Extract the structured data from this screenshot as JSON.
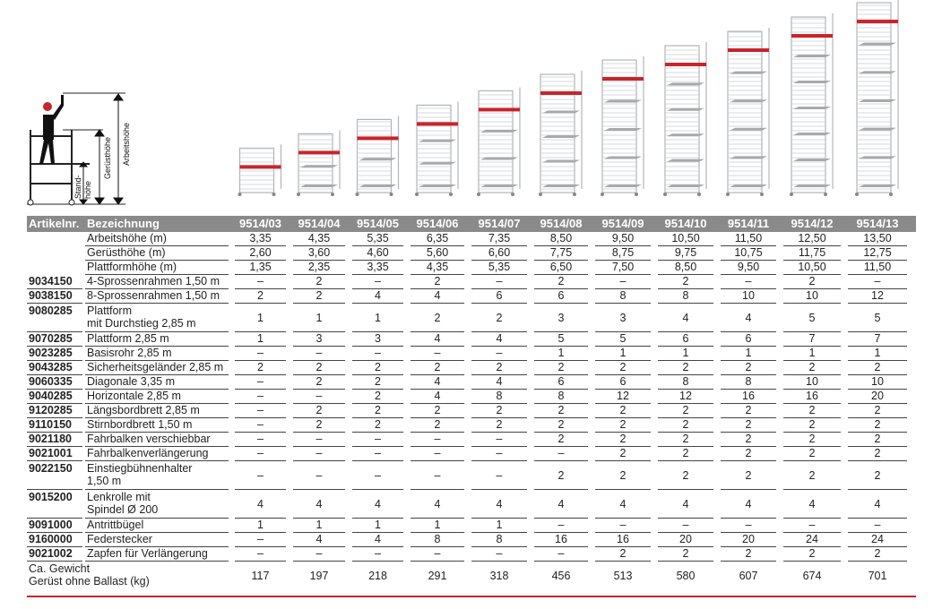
{
  "diagram": {
    "labels": {
      "working": "Arbeitshöhe",
      "scaffold": "Gerüsthöhe",
      "stand1": "Stand-",
      "stand2": "höhe"
    }
  },
  "colors": {
    "header_bg": "#8a8a8a",
    "accent": "#c8242c",
    "platform": "#a9a9a9"
  },
  "table": {
    "headers": {
      "article": "Artikelnr.",
      "description": "Bezeichnung"
    },
    "models": [
      "9514/03",
      "9514/04",
      "9514/05",
      "9514/06",
      "9514/07",
      "9514/08",
      "9514/09",
      "9514/10",
      "9514/11",
      "9514/12",
      "9514/13"
    ],
    "rows": [
      {
        "art": "",
        "desc": [
          "Arbeitshöhe (m)"
        ],
        "vals": [
          "3,35",
          "4,35",
          "5,35",
          "6,35",
          "7,35",
          "8,50",
          "9,50",
          "10,50",
          "11,50",
          "12,50",
          "13,50"
        ]
      },
      {
        "art": "",
        "desc": [
          "Gerüsthöhe (m)"
        ],
        "vals": [
          "2,60",
          "3,60",
          "4,60",
          "5,60",
          "6,60",
          "7,75",
          "8,75",
          "9,75",
          "10,75",
          "11,75",
          "12,75"
        ]
      },
      {
        "art": "",
        "desc": [
          "Plattformhöhe (m)"
        ],
        "vals": [
          "1,35",
          "2,35",
          "3,35",
          "4,35",
          "5,35",
          "6,50",
          "7,50",
          "8,50",
          "9,50",
          "10,50",
          "11,50"
        ]
      },
      {
        "art": "9034150",
        "desc": [
          "4-Sprossenrahmen 1,50 m"
        ],
        "vals": [
          "–",
          "2",
          "–",
          "2",
          "–",
          "2",
          "–",
          "2",
          "–",
          "2",
          "–"
        ]
      },
      {
        "art": "9038150",
        "desc": [
          "8-Sprossenrahmen 1,50 m"
        ],
        "vals": [
          "2",
          "2",
          "4",
          "4",
          "6",
          "6",
          "8",
          "8",
          "10",
          "10",
          "12"
        ]
      },
      {
        "art": "9080285",
        "desc": [
          "Plattform",
          "mit Durchstieg 2,85 m"
        ],
        "vals": [
          "1",
          "1",
          "1",
          "2",
          "2",
          "3",
          "3",
          "4",
          "4",
          "5",
          "5"
        ]
      },
      {
        "art": "9070285",
        "desc": [
          "Plattform 2,85 m"
        ],
        "vals": [
          "1",
          "3",
          "3",
          "4",
          "4",
          "5",
          "5",
          "6",
          "6",
          "7",
          "7"
        ]
      },
      {
        "art": "9023285",
        "desc": [
          "Basisrohr 2,85 m"
        ],
        "vals": [
          "–",
          "–",
          "–",
          "–",
          "–",
          "1",
          "1",
          "1",
          "1",
          "1",
          "1"
        ]
      },
      {
        "art": "9043285",
        "desc": [
          "Sicherheitsgeländer 2,85 m"
        ],
        "vals": [
          "2",
          "2",
          "2",
          "2",
          "2",
          "2",
          "2",
          "2",
          "2",
          "2",
          "2"
        ]
      },
      {
        "art": "9060335",
        "desc": [
          "Diagonale 3,35 m"
        ],
        "vals": [
          "–",
          "2",
          "2",
          "4",
          "4",
          "6",
          "6",
          "8",
          "8",
          "10",
          "10"
        ]
      },
      {
        "art": "9040285",
        "desc": [
          "Horizontale 2,85 m"
        ],
        "vals": [
          "–",
          "–",
          "2",
          "4",
          "8",
          "8",
          "12",
          "12",
          "16",
          "16",
          "20"
        ]
      },
      {
        "art": "9120285",
        "desc": [
          "Längsbordbrett 2,85 m"
        ],
        "vals": [
          "–",
          "2",
          "2",
          "2",
          "2",
          "2",
          "2",
          "2",
          "2",
          "2",
          "2"
        ]
      },
      {
        "art": "9110150",
        "desc": [
          "Stirnbordbrett 1,50 m"
        ],
        "vals": [
          "–",
          "2",
          "2",
          "2",
          "2",
          "2",
          "2",
          "2",
          "2",
          "2",
          "2"
        ]
      },
      {
        "art": "9021180",
        "desc": [
          "Fahrbalken verschiebbar"
        ],
        "vals": [
          "–",
          "–",
          "–",
          "–",
          "–",
          "2",
          "2",
          "2",
          "2",
          "2",
          "2"
        ]
      },
      {
        "art": "9021001",
        "desc": [
          "Fahrbalkenverlängerung"
        ],
        "vals": [
          "–",
          "–",
          "–",
          "–",
          "–",
          "–",
          "2",
          "2",
          "2",
          "2",
          "2"
        ]
      },
      {
        "art": "9022150",
        "desc": [
          "Einstiegbühnenhalter",
          "1,50 m"
        ],
        "vals": [
          "–",
          "–",
          "–",
          "–",
          "–",
          "2",
          "2",
          "2",
          "2",
          "2",
          "2"
        ]
      },
      {
        "art": "9015200",
        "desc": [
          "Lenkrolle mit",
          "Spindel Ø 200"
        ],
        "vals": [
          "4",
          "4",
          "4",
          "4",
          "4",
          "4",
          "4",
          "4",
          "4",
          "4",
          "4"
        ]
      },
      {
        "art": "9091000",
        "desc": [
          "Antrittbügel"
        ],
        "vals": [
          "1",
          "1",
          "1",
          "1",
          "1",
          "–",
          "–",
          "–",
          "–",
          "–",
          "–"
        ]
      },
      {
        "art": "9160000",
        "desc": [
          "Federstecker"
        ],
        "vals": [
          "–",
          "4",
          "4",
          "8",
          "8",
          "16",
          "16",
          "20",
          "20",
          "24",
          "24"
        ]
      },
      {
        "art": "9021002",
        "desc": [
          "Zapfen für Verlängerung"
        ],
        "vals": [
          "–",
          "–",
          "–",
          "–",
          "–",
          "–",
          "2",
          "2",
          "2",
          "2",
          "2"
        ]
      },
      {
        "art": "",
        "desc": [
          "Ca. Gewicht",
          "Gerüst ohne Ballast (kg)"
        ],
        "vals": [
          "117",
          "197",
          "218",
          "291",
          "318",
          "456",
          "513",
          "580",
          "607",
          "674",
          "701"
        ],
        "weight": true
      }
    ]
  }
}
